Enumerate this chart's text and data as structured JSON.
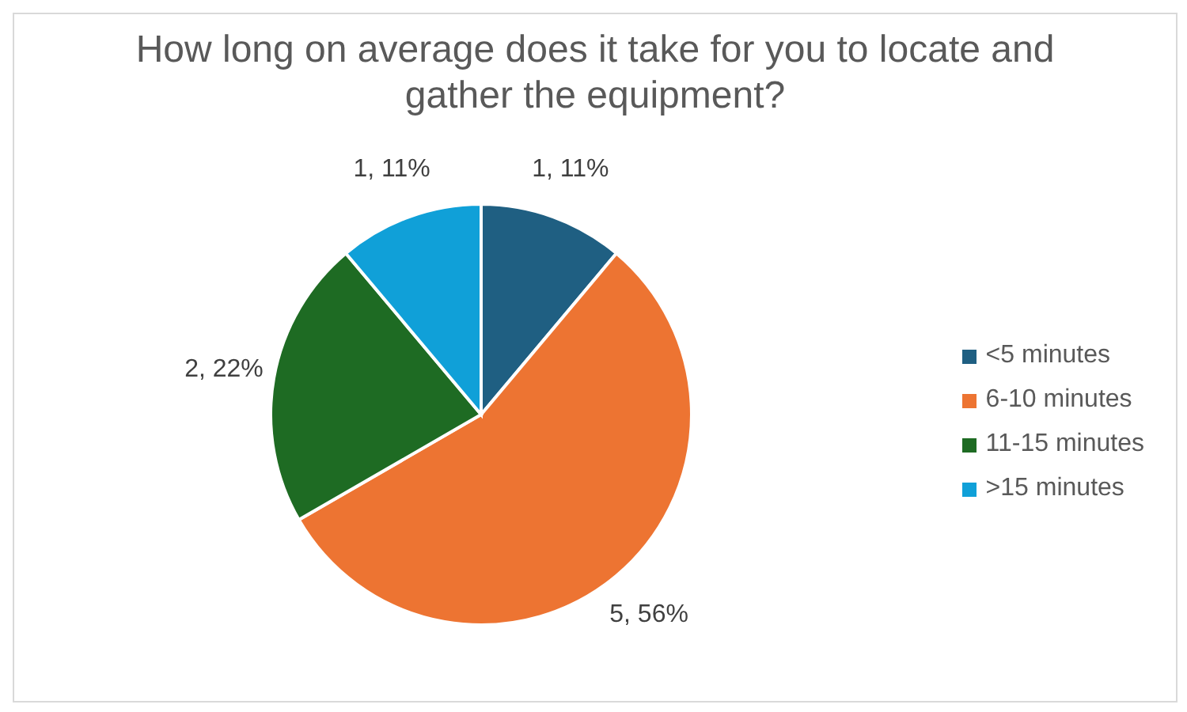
{
  "chart_data": {
    "type": "pie",
    "title": "How long on average does it take for you to locate and gather the equipment?",
    "categories": [
      "<5 minutes",
      "6-10 minutes",
      "11-15 minutes",
      ">15 minutes"
    ],
    "values": [
      1,
      5,
      2,
      1
    ],
    "colors": [
      "#1f5f82",
      "#ed7432",
      "#1e6b23",
      "#10a0d8"
    ],
    "value_labels": [
      "1, 11%",
      "5, 56%",
      "2, 22%",
      "1, 11%"
    ],
    "legend": "right"
  }
}
